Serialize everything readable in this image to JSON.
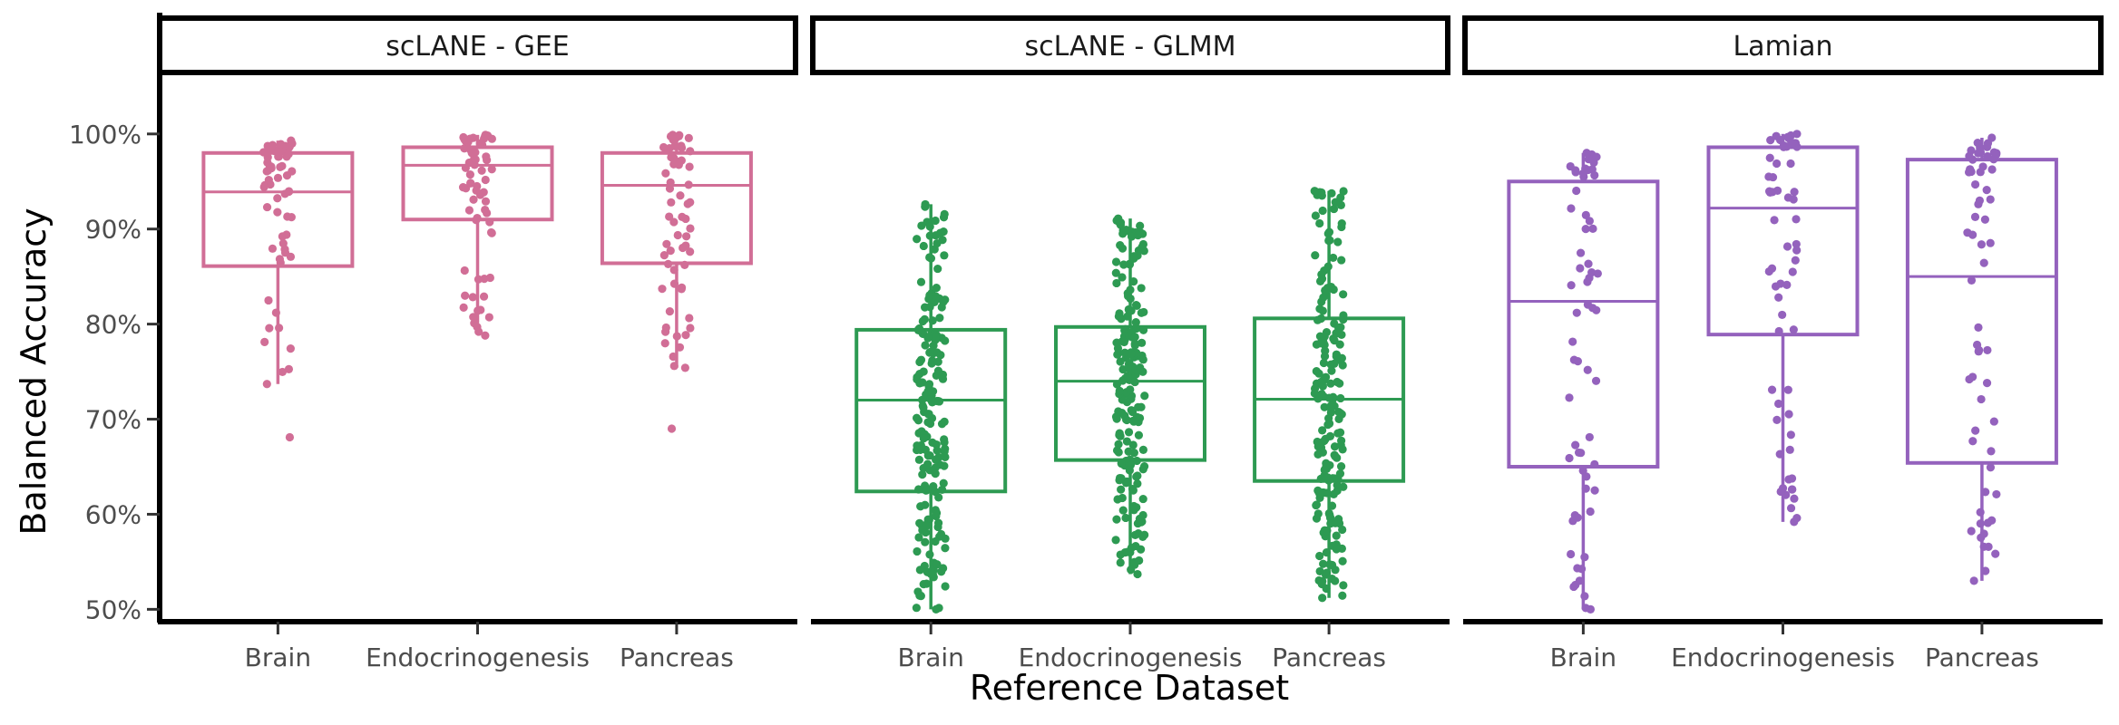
{
  "chart_data": {
    "type": "boxplot",
    "xlabel": "Reference Dataset",
    "ylabel": "Balanced Accuracy",
    "ylim": [
      0.487,
      1.057
    ],
    "yticks": [
      0.5,
      0.6,
      0.7,
      0.8,
      0.9,
      1.0
    ],
    "ytick_labels": [
      "50%",
      "60%",
      "70%",
      "80%",
      "90%",
      "100%"
    ],
    "categories": [
      "Brain",
      "Endocrinogenesis",
      "Pancreas"
    ],
    "grid": false,
    "legend": "none",
    "panels": [
      {
        "name": "scLANE - GEE",
        "color": "#D16E96",
        "groups": [
          {
            "category": "Brain",
            "q1": 0.861,
            "median": 0.939,
            "q3": 0.98,
            "whisker_low": 0.737,
            "whisker_high": 0.993,
            "outliers": [
              0.681
            ],
            "n_points": 60
          },
          {
            "category": "Endocrinogenesis",
            "q1": 0.91,
            "median": 0.967,
            "q3": 0.986,
            "whisker_low": 0.801,
            "whisker_high": 0.999,
            "outliers": [
              0.788,
              0.792,
              0.797
            ],
            "n_points": 60
          },
          {
            "category": "Pancreas",
            "q1": 0.864,
            "median": 0.946,
            "q3": 0.98,
            "whisker_low": 0.754,
            "whisker_high": 0.999,
            "outliers": [
              0.69
            ],
            "n_points": 60
          }
        ]
      },
      {
        "name": "scLANE - GLMM",
        "color": "#2D9A52",
        "groups": [
          {
            "category": "Brain",
            "q1": 0.624,
            "median": 0.72,
            "q3": 0.794,
            "whisker_low": 0.5,
            "whisker_high": 0.926,
            "outliers": [],
            "n_points": 190
          },
          {
            "category": "Endocrinogenesis",
            "q1": 0.657,
            "median": 0.74,
            "q3": 0.797,
            "whisker_low": 0.537,
            "whisker_high": 0.911,
            "outliers": [],
            "n_points": 190
          },
          {
            "category": "Pancreas",
            "q1": 0.635,
            "median": 0.721,
            "q3": 0.806,
            "whisker_low": 0.512,
            "whisker_high": 0.94,
            "outliers": [],
            "n_points": 190
          }
        ]
      },
      {
        "name": "Lamian",
        "color": "#9462BD",
        "groups": [
          {
            "category": "Brain",
            "q1": 0.65,
            "median": 0.824,
            "q3": 0.95,
            "whisker_low": 0.5,
            "whisker_high": 0.98,
            "outliers": [],
            "n_points": 60
          },
          {
            "category": "Endocrinogenesis",
            "q1": 0.789,
            "median": 0.922,
            "q3": 0.986,
            "whisker_low": 0.592,
            "whisker_high": 1.0,
            "outliers": [],
            "n_points": 60
          },
          {
            "category": "Pancreas",
            "q1": 0.654,
            "median": 0.85,
            "q3": 0.973,
            "whisker_low": 0.53,
            "whisker_high": 0.996,
            "outliers": [],
            "n_points": 60
          }
        ]
      }
    ]
  }
}
